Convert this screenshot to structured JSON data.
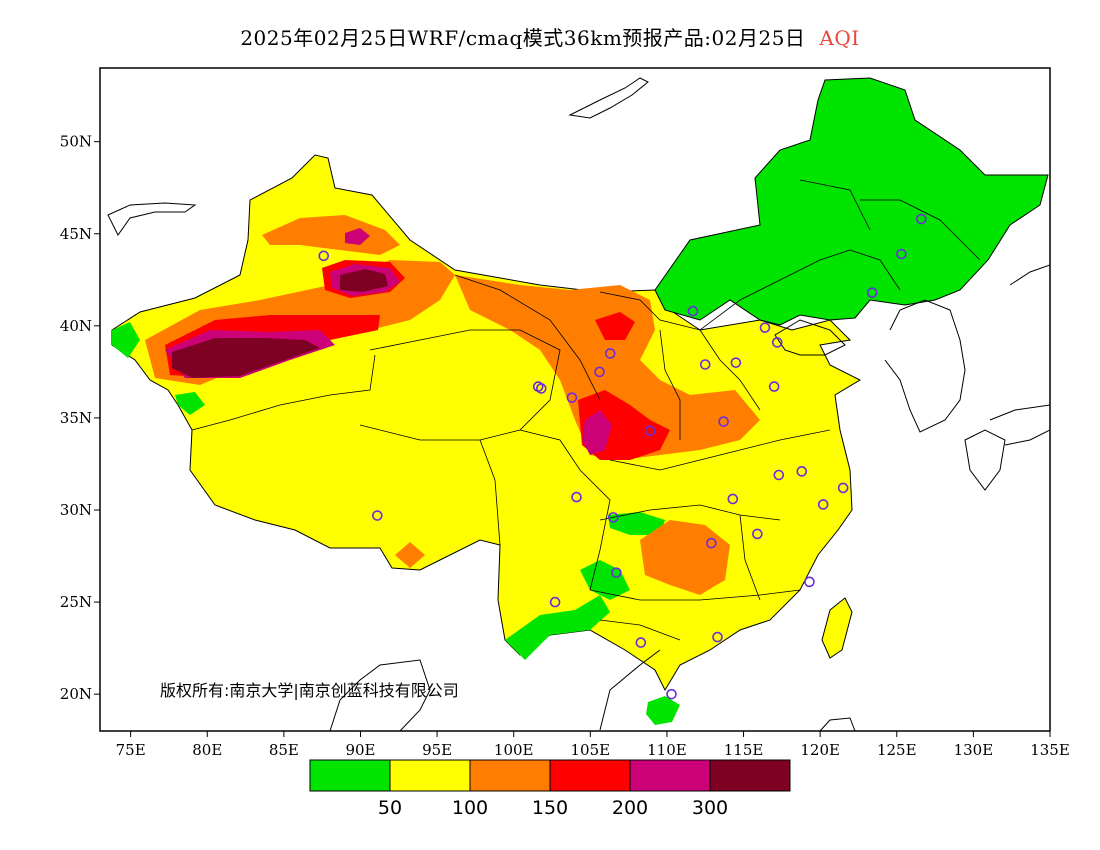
{
  "title": {
    "main": "2025年02月25日WRF/cmaq模式36km预报产品:02月25日",
    "variable": "AQI"
  },
  "copyright": "版权所有:南京大学|南京创蓝科技有限公司",
  "axes": {
    "lon_ticks": [
      "75E",
      "80E",
      "85E",
      "90E",
      "95E",
      "100E",
      "105E",
      "110E",
      "115E",
      "120E",
      "125E",
      "130E",
      "135E"
    ],
    "lat_ticks": [
      "50N",
      "45N",
      "40N",
      "35N",
      "30N",
      "25N",
      "20N"
    ],
    "lon_range": [
      73,
      135
    ],
    "lat_range": [
      18,
      54
    ]
  },
  "colorbar": {
    "colors": [
      "#00e400",
      "#ffff00",
      "#ff7e00",
      "#ff0000",
      "#cc0077",
      "#7e0023"
    ],
    "labels": [
      "50",
      "100",
      "150",
      "200",
      "300"
    ]
  },
  "stations": [
    [
      87.6,
      43.8
    ],
    [
      91.1,
      29.7
    ],
    [
      101.8,
      36.6
    ],
    [
      103.8,
      36.1
    ],
    [
      106.3,
      38.5
    ],
    [
      104.1,
      30.7
    ],
    [
      106.5,
      29.6
    ],
    [
      106.7,
      26.6
    ],
    [
      102.7,
      25.0
    ],
    [
      108.3,
      22.8
    ],
    [
      110.3,
      20.0
    ],
    [
      113.3,
      23.1
    ],
    [
      112.9,
      28.2
    ],
    [
      114.3,
      30.6
    ],
    [
      115.9,
      28.7
    ],
    [
      119.3,
      26.1
    ],
    [
      120.2,
      30.3
    ],
    [
      121.5,
      31.2
    ],
    [
      118.8,
      32.1
    ],
    [
      117.3,
      31.9
    ],
    [
      113.7,
      34.8
    ],
    [
      108.9,
      34.3
    ],
    [
      111.7,
      40.8
    ],
    [
      112.5,
      37.9
    ],
    [
      114.5,
      38.0
    ],
    [
      117.2,
      39.1
    ],
    [
      116.4,
      39.9
    ],
    [
      117.0,
      36.7
    ],
    [
      123.4,
      41.8
    ],
    [
      125.3,
      43.9
    ],
    [
      126.6,
      45.8
    ],
    [
      105.6,
      37.5
    ],
    [
      101.6,
      36.7
    ]
  ]
}
